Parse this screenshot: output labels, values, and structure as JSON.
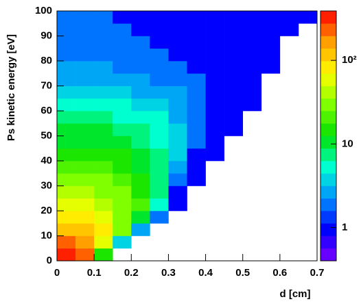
{
  "chart_data": {
    "type": "heatmap",
    "xlabel": "d [cm]",
    "ylabel": "Ps kinetic energy [eV]",
    "x_bins": [
      0,
      0.05,
      0.1,
      0.15,
      0.2,
      0.25,
      0.3,
      0.35,
      0.4,
      0.45,
      0.5,
      0.55,
      0.6,
      0.65,
      0.7
    ],
    "y_bins": [
      0,
      5,
      10,
      15,
      20,
      25,
      30,
      35,
      40,
      45,
      50,
      55,
      60,
      65,
      70,
      75,
      80,
      85,
      90,
      95,
      100
    ],
    "z": [
      [
        300,
        200,
        15,
        null,
        null,
        null,
        null,
        null,
        null,
        null,
        null,
        null,
        null,
        null
      ],
      [
        250,
        150,
        60,
        4,
        null,
        null,
        null,
        null,
        null,
        null,
        null,
        null,
        null,
        null
      ],
      [
        120,
        100,
        70,
        30,
        3,
        null,
        null,
        null,
        null,
        null,
        null,
        null,
        null,
        null
      ],
      [
        80,
        70,
        55,
        35,
        12,
        2,
        null,
        null,
        null,
        null,
        null,
        null,
        null,
        null
      ],
      [
        55,
        50,
        40,
        30,
        18,
        5,
        1,
        null,
        null,
        null,
        null,
        null,
        null,
        null
      ],
      [
        40,
        38,
        32,
        25,
        15,
        7,
        1,
        null,
        null,
        null,
        null,
        null,
        null,
        null
      ],
      [
        30,
        28,
        25,
        20,
        14,
        8,
        2,
        1,
        null,
        null,
        null,
        null,
        null,
        null
      ],
      [
        22,
        22,
        20,
        16,
        12,
        8,
        3,
        1,
        null,
        null,
        null,
        null,
        null,
        null
      ],
      [
        16,
        16,
        15,
        13,
        10,
        7,
        4,
        1,
        1,
        null,
        null,
        null,
        null,
        null
      ],
      [
        12,
        12,
        11,
        10,
        8,
        6,
        4,
        2,
        1,
        null,
        null,
        null,
        null,
        null
      ],
      [
        9,
        9,
        9,
        8,
        7,
        5,
        4,
        2,
        1,
        1,
        null,
        null,
        null,
        null
      ],
      [
        7,
        7,
        7,
        6,
        6,
        5,
        3,
        2,
        1,
        1,
        null,
        null,
        null,
        null
      ],
      [
        5,
        5,
        5,
        5,
        4,
        4,
        3,
        2,
        1,
        1,
        1,
        null,
        null,
        null
      ],
      [
        4,
        4,
        4,
        4,
        3,
        3,
        3,
        2,
        1,
        1,
        1,
        null,
        null,
        null
      ],
      [
        3,
        3,
        3,
        3,
        3,
        2,
        2,
        2,
        1,
        1,
        1,
        null,
        null,
        null
      ],
      [
        3,
        3,
        3,
        2,
        2,
        2,
        2,
        1,
        1,
        1,
        1,
        1,
        null,
        null
      ],
      [
        2,
        2,
        2,
        2,
        2,
        2,
        1,
        1,
        1,
        1,
        1,
        1,
        null,
        null
      ],
      [
        2,
        2,
        2,
        2,
        2,
        1,
        1,
        1,
        1,
        1,
        1,
        1,
        null,
        null
      ],
      [
        2,
        2,
        2,
        2,
        1,
        1,
        1,
        1,
        1,
        1,
        1,
        1,
        1,
        null
      ],
      [
        2,
        2,
        2,
        1,
        1,
        1,
        1,
        1,
        1,
        1,
        1,
        1,
        1,
        1
      ]
    ],
    "xlim": [
      0,
      0.7
    ],
    "xticks": [
      0,
      0.1,
      0.2,
      0.3,
      0.4,
      0.5,
      0.6,
      0.7
    ],
    "ylim": [
      0,
      100
    ],
    "yticks": [
      0,
      10,
      20,
      30,
      40,
      50,
      60,
      70,
      80,
      90,
      100
    ],
    "zlim": [
      0.4,
      390
    ],
    "zlog": true,
    "zlevels": 20,
    "zticks": [
      1,
      10,
      {
        "value": 100,
        "label": "10²"
      }
    ],
    "palette": [
      "#7f00ff",
      "#0000ff",
      "#0090ff",
      "#00ffd0",
      "#00e000",
      "#80ff00",
      "#ffff00",
      "#ffa000",
      "#ff0000"
    ]
  }
}
